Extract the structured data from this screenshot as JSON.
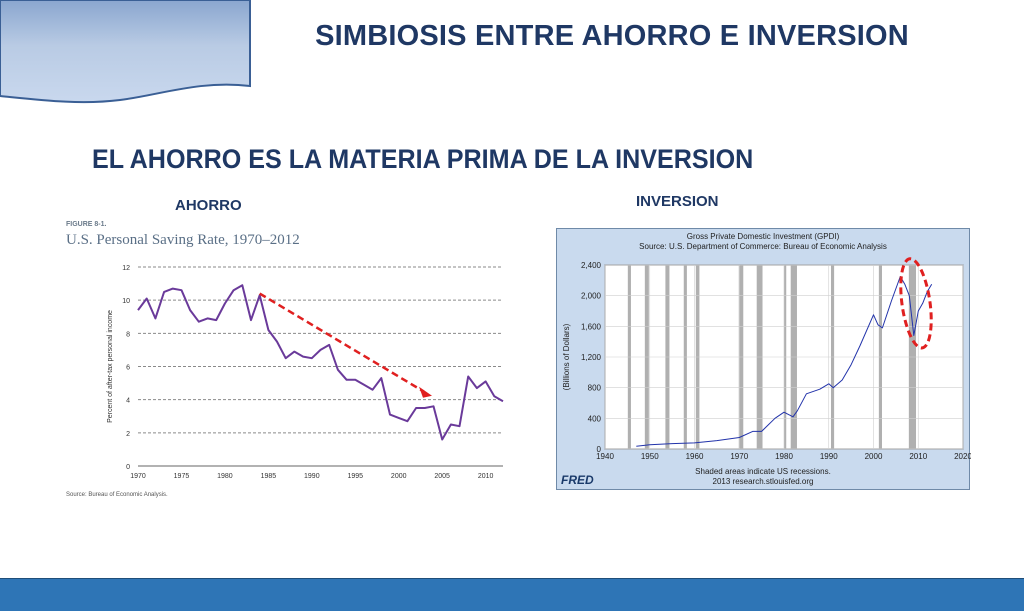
{
  "slide": {
    "title": "SIMBIOSIS ENTRE AHORRO E INVERSION",
    "subtitle": "EL AHORRO ES LA MATERIA PRIMA DE LA INVERSION",
    "left_label": "AHORRO",
    "right_label": "INVERSION"
  },
  "colors": {
    "title": "#1f3864",
    "saving_line": "#6a3a9a",
    "gpdi_line": "#2233aa",
    "recession_band": "#b0b0b0",
    "annotation": "#e02020",
    "bottom_bar": "#2e75b6"
  },
  "chart_data": [
    {
      "type": "line",
      "figure_label": "FIGURE 8-1.",
      "title": "U.S. Personal Saving Rate, 1970–2012",
      "ylabel": "Percent of after-tax personal income",
      "xlabel": "",
      "source": "Source: Bureau of Economic Analysis.",
      "xlim": [
        1970,
        2012
      ],
      "ylim": [
        0,
        12
      ],
      "x_ticks": [
        1970,
        1975,
        1980,
        1985,
        1990,
        1995,
        2000,
        2005,
        2010
      ],
      "y_ticks": [
        0,
        2,
        4,
        6,
        8,
        10,
        12
      ],
      "grid": "horizontal-dashed",
      "series": [
        {
          "x": [
            1970,
            1971,
            1972,
            1973,
            1974,
            1975,
            1976,
            1977,
            1978,
            1979,
            1980,
            1981,
            1982,
            1983,
            1984,
            1985,
            1986,
            1987,
            1988,
            1989,
            1990,
            1991,
            1992,
            1993,
            1994,
            1995,
            1996,
            1997,
            1998,
            1999,
            2000,
            2001,
            2002,
            2003,
            2004,
            2005,
            2006,
            2007,
            2008,
            2009,
            2010,
            2011,
            2012
          ],
          "values": [
            9.4,
            10.1,
            8.9,
            10.5,
            10.7,
            10.6,
            9.4,
            8.7,
            8.9,
            8.8,
            9.8,
            10.6,
            10.9,
            8.8,
            10.3,
            8.2,
            7.5,
            6.5,
            6.9,
            6.6,
            6.5,
            7.0,
            7.3,
            5.8,
            5.2,
            5.2,
            4.9,
            4.6,
            5.3,
            3.1,
            2.9,
            2.7,
            3.5,
            3.5,
            3.6,
            1.6,
            2.5,
            2.4,
            5.4,
            4.7,
            5.1,
            4.2,
            3.9
          ]
        }
      ],
      "annotation": "dashed red arrow showing decline from ~1984 to ~2005"
    },
    {
      "type": "line",
      "title": "Gross Private Domestic Investment (GPDI)",
      "subtitle": "Source: U.S. Department of Commerce: Bureau of Economic Analysis",
      "ylabel": "(Billions of Dollars)",
      "xlabel": "",
      "xlim": [
        1940,
        2020
      ],
      "ylim": [
        0,
        2400
      ],
      "x_ticks": [
        1940,
        1950,
        1960,
        1970,
        1980,
        1990,
        2000,
        2010,
        2020
      ],
      "y_ticks": [
        0,
        400,
        800,
        1200,
        1600,
        2000,
        2400
      ],
      "y_tick_labels": [
        "0",
        "400",
        "800",
        "1,200",
        "1,600",
        "2,000",
        "2,400"
      ],
      "grid": "solid",
      "recessions": [
        [
          1945.1,
          1945.8
        ],
        [
          1948.9,
          1949.8
        ],
        [
          1953.5,
          1954.4
        ],
        [
          1957.6,
          1958.3
        ],
        [
          1960.3,
          1961.1
        ],
        [
          1969.9,
          1970.9
        ],
        [
          1973.9,
          1975.2
        ],
        [
          1980.0,
          1980.5
        ],
        [
          1981.5,
          1982.9
        ],
        [
          1990.5,
          1991.2
        ],
        [
          2001.2,
          2001.9
        ],
        [
          2007.9,
          2009.5
        ]
      ],
      "series": [
        {
          "x": [
            1947,
            1950,
            1955,
            1960,
            1965,
            1970,
            1973,
            1975,
            1978,
            1980,
            1982,
            1983,
            1985,
            1988,
            1990,
            1991,
            1993,
            1995,
            1997,
            2000,
            2001,
            2002,
            2004,
            2006,
            2007,
            2008,
            2009,
            2010,
            2011,
            2012,
            2013
          ],
          "values": [
            36,
            55,
            70,
            80,
            110,
            150,
            230,
            230,
            400,
            480,
            420,
            500,
            720,
            780,
            850,
            800,
            900,
            1100,
            1350,
            1750,
            1620,
            1580,
            1930,
            2250,
            2150,
            2000,
            1480,
            1800,
            1900,
            2050,
            2150
          ]
        }
      ],
      "note_line1": "Shaded areas indicate US recessions.",
      "note_line2": "2013 research.stlouisfed.org",
      "logo": "FRED",
      "annotation": "dashed red ellipse around 2008–2009 drop"
    }
  ]
}
